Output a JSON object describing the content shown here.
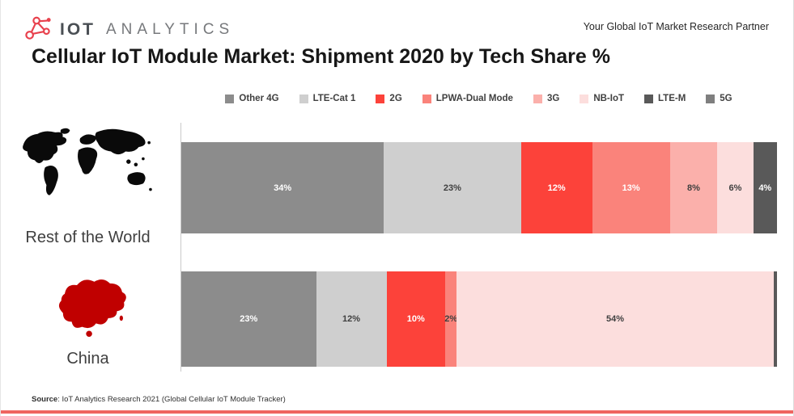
{
  "header": {
    "logo_primary": "IOT",
    "logo_secondary": "ANALYTICS",
    "tagline": "Your Global IoT Market Research Partner"
  },
  "title": "Cellular IoT Module Market: Shipment 2020 by Tech Share %",
  "source": {
    "label": "Source",
    "text": ": IoT Analytics Research 2021 (Global Cellular IoT Module Tracker)"
  },
  "icons": {
    "logo": "network-nodes-icon",
    "row1": "world-map-icon",
    "row2": "china-map-icon"
  },
  "chart_data": {
    "type": "bar",
    "orientation": "horizontal",
    "stacked": true,
    "unit": "%",
    "x_range": [
      0,
      100
    ],
    "grid": false,
    "legend_position": "top",
    "legend": [
      {
        "label": "Other 4G",
        "color": "#8c8c8c"
      },
      {
        "label": "LTE-Cat 1",
        "color": "#cfcfcf"
      },
      {
        "label": "2G",
        "color": "#fc423a"
      },
      {
        "label": "LPWA-Dual Mode",
        "color": "#fa837b"
      },
      {
        "label": "3G",
        "color": "#fbb0ab"
      },
      {
        "label": "NB-IoT",
        "color": "#fcdedd"
      },
      {
        "label": "LTE-M",
        "color": "#595959"
      },
      {
        "label": "5G",
        "color": "#7f7f7f"
      }
    ],
    "bars": [
      {
        "category": "Rest of the World",
        "icon": "world-map-icon",
        "segments": [
          {
            "series": "Other 4G",
            "value": 34,
            "label": "34%",
            "color": "#8c8c8c",
            "label_color": "#ffffff"
          },
          {
            "series": "LTE-Cat 1",
            "value": 23,
            "label": "23%",
            "color": "#cfcfcf",
            "label_color": "#3f3f3f"
          },
          {
            "series": "2G",
            "value": 12,
            "label": "12%",
            "color": "#fc423a",
            "label_color": "#ffffff"
          },
          {
            "series": "LPWA-Dual Mode",
            "value": 13,
            "label": "13%",
            "color": "#fa837b",
            "label_color": "#ffffff"
          },
          {
            "series": "3G",
            "value": 8,
            "label": "8%",
            "color": "#fbb0ab",
            "label_color": "#3f3f3f"
          },
          {
            "series": "NB-IoT",
            "value": 6,
            "label": "6%",
            "color": "#fcdedd",
            "label_color": "#3f3f3f"
          },
          {
            "series": "LTE-M",
            "value": 4,
            "label": "4%",
            "color": "#595959",
            "label_color": "#ffffff"
          }
        ]
      },
      {
        "category": "China",
        "icon": "china-map-icon",
        "segments": [
          {
            "series": "Other 4G",
            "value": 23,
            "label": "23%",
            "color": "#8c8c8c",
            "label_color": "#ffffff"
          },
          {
            "series": "LTE-Cat 1",
            "value": 12,
            "label": "12%",
            "color": "#cfcfcf",
            "label_color": "#3f3f3f"
          },
          {
            "series": "2G",
            "value": 10,
            "label": "10%",
            "color": "#fc423a",
            "label_color": "#ffffff"
          },
          {
            "series": "LPWA-Dual Mode",
            "value": 2,
            "label": "2%",
            "color": "#fa837b",
            "label_color": "#3f3f3f"
          },
          {
            "series": "NB-IoT",
            "value": 54,
            "label": "54%",
            "color": "#fcdedd",
            "label_color": "#3f3f3f"
          },
          {
            "series": "LTE-M",
            "value": 0.6,
            "label": "",
            "color": "#595959",
            "label_color": "#ffffff"
          }
        ]
      }
    ]
  }
}
